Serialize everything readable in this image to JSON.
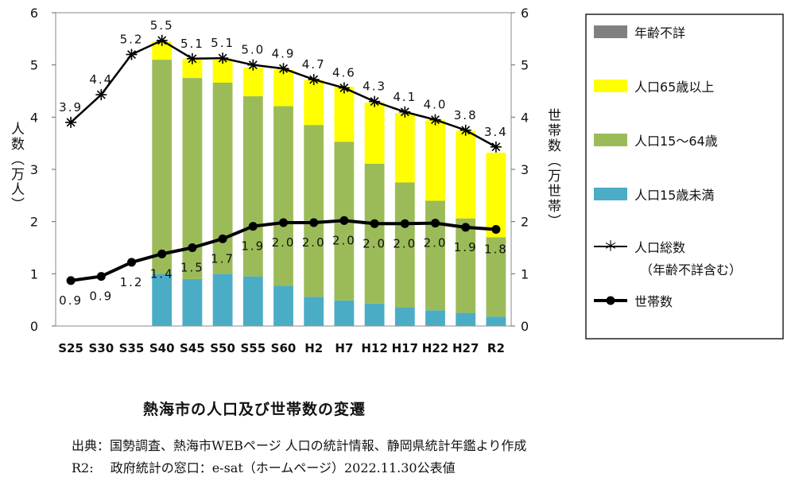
{
  "chart_data": {
    "type": "bar",
    "categories": [
      "S25",
      "S30",
      "S35",
      "S40",
      "S45",
      "S50",
      "S55",
      "S60",
      "H2",
      "H7",
      "H12",
      "H17",
      "H22",
      "H27",
      "R2"
    ],
    "series": [
      {
        "name": "人口15歳未満",
        "kind": "bar",
        "axis": "left",
        "color": "#4bacc6",
        "values": [
          null,
          null,
          null,
          1.0,
          0.9,
          1.0,
          0.95,
          0.77,
          0.56,
          0.49,
          0.43,
          0.36,
          0.3,
          0.25,
          0.18
        ]
      },
      {
        "name": "人口15～64歳",
        "kind": "bar",
        "axis": "left",
        "color": "#9bbb59",
        "values": [
          null,
          null,
          null,
          4.1,
          3.85,
          3.66,
          3.45,
          3.44,
          3.29,
          3.04,
          2.68,
          2.39,
          2.1,
          1.81,
          1.52
        ]
      },
      {
        "name": "人口65歳以上",
        "kind": "bar",
        "axis": "left",
        "color": "#ffff00",
        "values": [
          null,
          null,
          null,
          0.35,
          0.37,
          0.44,
          0.55,
          0.7,
          0.86,
          1.05,
          1.17,
          1.33,
          1.54,
          1.68,
          1.62
        ]
      },
      {
        "name": "年齢不詳",
        "kind": "bar",
        "axis": "left",
        "color": "#808080",
        "values": [
          null,
          null,
          null,
          0,
          0,
          0,
          0,
          0,
          0,
          0,
          0,
          0,
          0,
          0,
          0
        ]
      },
      {
        "name": "人口総数",
        "kind": "line",
        "axis": "left",
        "marker": "asterisk",
        "values": [
          3.9,
          4.43,
          5.2,
          5.47,
          5.12,
          5.13,
          5.0,
          4.93,
          4.72,
          4.56,
          4.3,
          4.1,
          3.95,
          3.75,
          3.43
        ],
        "labels": [
          "3.9",
          "4.4",
          "5.2",
          "5.5",
          "5.1",
          "5.1",
          "5.0",
          "4.9",
          "4.7",
          "4.6",
          "4.3",
          "4.1",
          "4.0",
          "3.8",
          "3.4"
        ]
      },
      {
        "name": "世帯数",
        "kind": "line",
        "axis": "right",
        "marker": "dot",
        "values": [
          0.87,
          0.95,
          1.22,
          1.38,
          1.5,
          1.67,
          1.91,
          1.98,
          1.98,
          2.02,
          1.96,
          1.96,
          1.97,
          1.89,
          1.85
        ],
        "labels": [
          "0.9",
          "0.9",
          "1.2",
          "1.4",
          "1.5",
          "1.7",
          "1.9",
          "2.0",
          "2.0",
          "2.0",
          "2.0",
          "2.0",
          "2.0",
          "1.9",
          "1.8"
        ]
      }
    ],
    "legend_entries": [
      "年齢不詳",
      "人口65歳以上",
      "人口15～64歳",
      "人口15歳未満",
      "人口総数",
      "（年齢不詳含む）",
      "世帯数"
    ],
    "ylabel": "人数（万人）",
    "ylabel_right": "世帯数（万世帯）",
    "ylim": [
      0,
      6
    ],
    "ylim_right": [
      0,
      6
    ],
    "yticks": [
      "0",
      "1",
      "2",
      "3",
      "4",
      "5",
      "6"
    ],
    "grid": false,
    "legend_position": "right"
  },
  "caption": "熱海市の人口及び世帯数の変遷",
  "source_line1": "出典：国勢調査、熱海市WEBページ 人口の統計情報、静岡県統計年鑑より作成",
  "source_line2": "R2:　 政府統計の窓口：e-sat（ホームページ）2022.11.30公表値"
}
